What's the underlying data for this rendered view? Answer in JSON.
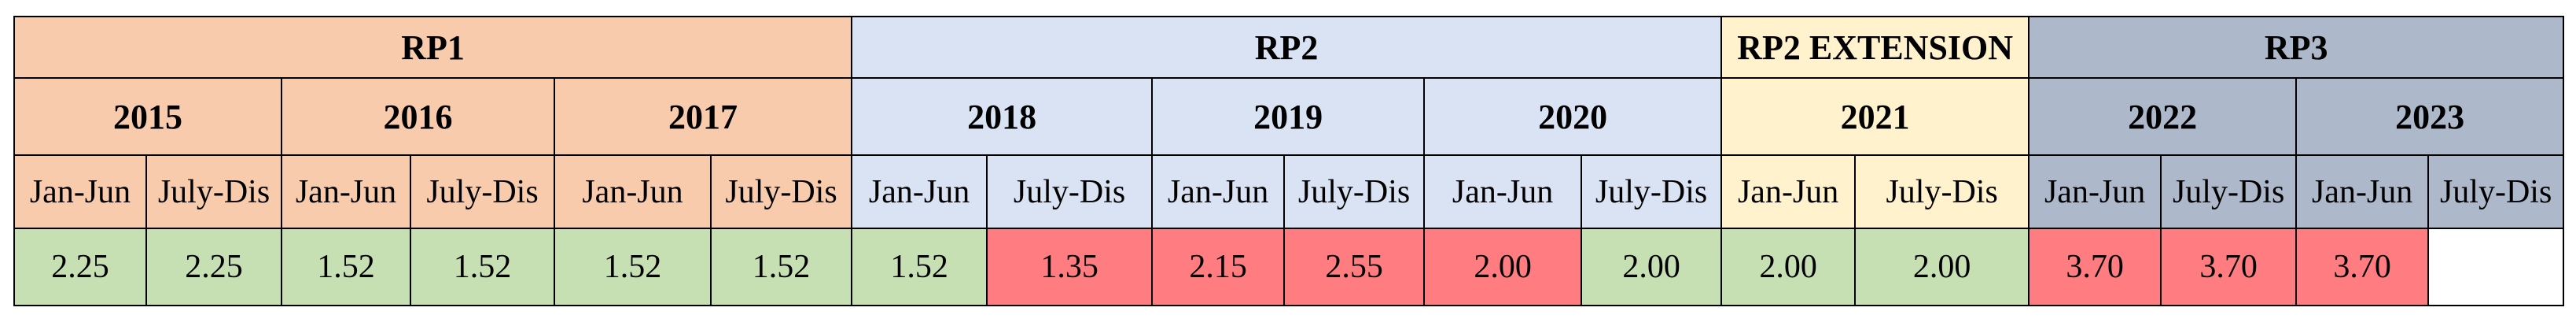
{
  "table": {
    "groups": [
      {
        "label": "RP1",
        "color": "#f8cbad",
        "years": [
          {
            "label": "2015",
            "periods": [
              "Jan-Jun",
              "July-Dis"
            ]
          },
          {
            "label": "2016",
            "periods": [
              "Jan-Jun",
              "July-Dis"
            ]
          },
          {
            "label": "2017",
            "periods": [
              "Jan-Jun",
              "July-Dis"
            ]
          }
        ]
      },
      {
        "label": "RP2",
        "color": "#dae3f3",
        "years": [
          {
            "label": "2018",
            "periods": [
              "Jan-Jun",
              "July-Dis"
            ]
          },
          {
            "label": "2019",
            "periods": [
              "Jan-Jun",
              "July-Dis"
            ]
          },
          {
            "label": "2020",
            "periods": [
              "Jan-Jun",
              "July-Dis"
            ]
          }
        ]
      },
      {
        "label": "RP2 EXTENSION",
        "color": "#fff2cc",
        "years": [
          {
            "label": "2021",
            "periods": [
              "Jan-Jun",
              "July-Dis"
            ]
          }
        ]
      },
      {
        "label": "RP3",
        "color": "#adb9ca",
        "years": [
          {
            "label": "2022",
            "periods": [
              "Jan-Jun",
              "July-Dis"
            ]
          },
          {
            "label": "2023",
            "periods": [
              "Jan-Jun",
              "July-Dis"
            ]
          }
        ]
      }
    ],
    "values": [
      {
        "value": "2.25",
        "color": "#c6e0b4"
      },
      {
        "value": "2.25",
        "color": "#c6e0b4"
      },
      {
        "value": "1.52",
        "color": "#c6e0b4"
      },
      {
        "value": "1.52",
        "color": "#c6e0b4"
      },
      {
        "value": "1.52",
        "color": "#c6e0b4"
      },
      {
        "value": "1.52",
        "color": "#c6e0b4"
      },
      {
        "value": "1.52",
        "color": "#c6e0b4"
      },
      {
        "value": "1.35",
        "color": "#ff7c80"
      },
      {
        "value": "2.15",
        "color": "#ff7c80"
      },
      {
        "value": "2.55",
        "color": "#ff7c80"
      },
      {
        "value": "2.00",
        "color": "#ff7c80"
      },
      {
        "value": "2.00",
        "color": "#c6e0b4"
      },
      {
        "value": "2.00",
        "color": "#c6e0b4"
      },
      {
        "value": "2.00",
        "color": "#c6e0b4"
      },
      {
        "value": "3.70",
        "color": "#ff7c80"
      },
      {
        "value": "3.70",
        "color": "#ff7c80"
      },
      {
        "value": "3.70",
        "color": "#ff7c80"
      },
      {
        "value": null,
        "color": "#ffffff"
      }
    ]
  }
}
